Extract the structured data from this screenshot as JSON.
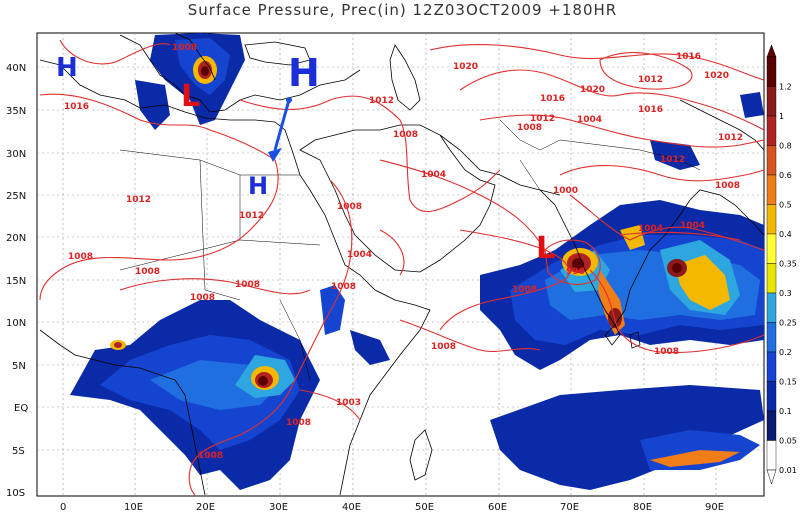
{
  "title": "Surface Pressure,   Prec(in) 12Z03OCT2009 +180HR",
  "lat_labels": [
    "40N",
    "35N",
    "30N",
    "25N",
    "20N",
    "15N",
    "10N",
    "5N",
    "EQ",
    "5S",
    "10S"
  ],
  "lon_labels": [
    "0",
    "10E",
    "20E",
    "30E",
    "40E",
    "50E",
    "60E",
    "70E",
    "80E",
    "90E"
  ],
  "colorbar": {
    "labels": [
      "1.2",
      "1",
      "0.8",
      "0.6",
      "0.5",
      "0.4",
      "0.35",
      "0.3",
      "0.25",
      "0.2",
      "0.15",
      "0.1",
      "0.05",
      "0.01"
    ],
    "colors": [
      "#5a0000",
      "#8b1a1a",
      "#b22222",
      "#d9531e",
      "#f07d18",
      "#f5b800",
      "#ffff33",
      "#e6e600",
      "#2ea7e0",
      "#1f6fe0",
      "#1545d0",
      "#0b2aa8",
      "#0a1a70",
      "#ffffff"
    ]
  },
  "pressure_labels": [
    "1008",
    "1016",
    "1012",
    "1012",
    "1008",
    "1012",
    "1008",
    "1008",
    "1008",
    "1008",
    "1008",
    "1004",
    "1004",
    "1003",
    "1008",
    "1008",
    "1008",
    "1008",
    "996",
    "1020",
    "1016",
    "1012",
    "1020",
    "1016",
    "1012",
    "1020",
    "1016",
    "1008",
    "1012",
    "1012",
    "1004",
    "1008",
    "1004",
    "1004",
    "1000",
    "1008",
    "1008"
  ],
  "centers": [
    "H",
    "H",
    "H",
    "L",
    "L"
  ],
  "colors": {
    "isobar": "#e03030",
    "high": "#1a2fd8",
    "low": "#e01010",
    "coast": "#000000"
  }
}
